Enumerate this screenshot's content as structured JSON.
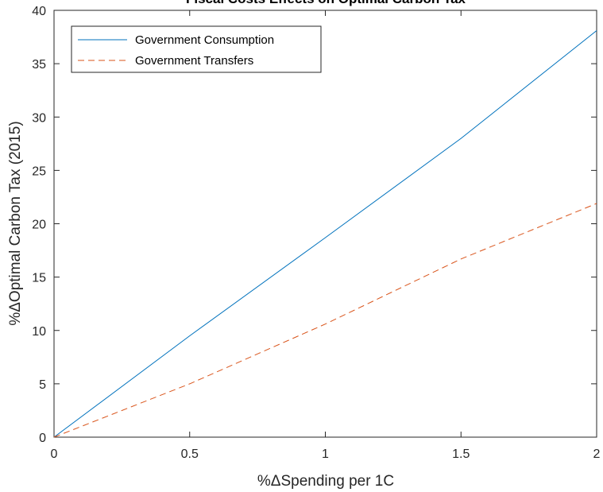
{
  "chart_data": {
    "type": "line",
    "title": "Fiscal Costs Effects on Optimal Carbon Tax",
    "xlabel": "%ΔSpending per 1C",
    "ylabel": "%ΔOptimal Carbon Tax (2015)",
    "xlim": [
      0,
      2
    ],
    "ylim": [
      0,
      40
    ],
    "xticks": [
      "0",
      "0.5",
      "1",
      "1.5",
      "2"
    ],
    "yticks": [
      "0",
      "5",
      "10",
      "15",
      "20",
      "25",
      "30",
      "35",
      "40"
    ],
    "grid": false,
    "legend_position": "top-left",
    "series": [
      {
        "name": "Government Consumption",
        "color": "#0072BD",
        "style": "solid",
        "x": [
          0,
          0.5,
          1,
          1.5,
          2
        ],
        "y": [
          0,
          9.5,
          18.7,
          28,
          38.1
        ]
      },
      {
        "name": "Government Transfers",
        "color": "#D95319",
        "style": "dashed",
        "x": [
          0,
          0.5,
          1,
          1.5,
          2
        ],
        "y": [
          0,
          5.0,
          10.6,
          16.7,
          21.9
        ]
      }
    ]
  }
}
